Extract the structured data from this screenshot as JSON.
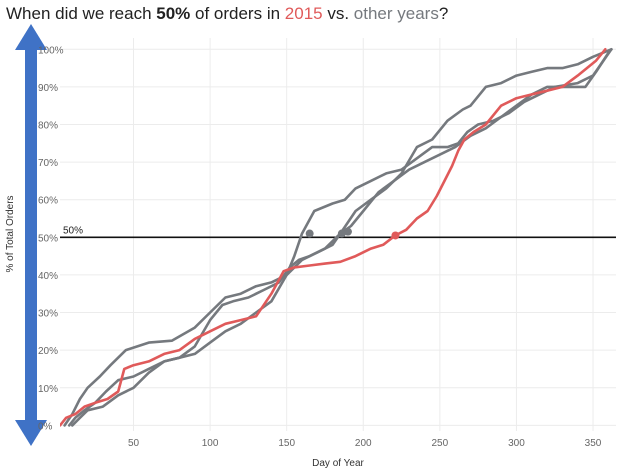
{
  "title": {
    "part1": "When did we reach ",
    "bold": "50%",
    "part2": " of orders in ",
    "highlight": "2015",
    "part3": " vs. ",
    "other": "other years",
    "part4": "?"
  },
  "colors": {
    "highlight": "#e05a5a",
    "other": "#75797e",
    "arrow": "#3f72c6",
    "reference": "#111111",
    "grid": "#ececec"
  },
  "chart_data": {
    "type": "line",
    "xlabel": "Day of Year",
    "ylabel": "% of Total Orders",
    "xlim": [
      2,
      365
    ],
    "ylim": [
      -1.5,
      103
    ],
    "x_ticks": [
      50,
      100,
      150,
      200,
      250,
      300,
      350
    ],
    "x_tick_labels": [
      "50",
      "100",
      "150",
      "200",
      "250",
      "300",
      "350"
    ],
    "y_ticks": [
      0,
      10,
      20,
      30,
      40,
      50,
      60,
      70,
      80,
      90,
      100
    ],
    "y_tick_labels": [
      "0%",
      "10%",
      "20%",
      "30%",
      "40%",
      "50%",
      "60%",
      "70%",
      "80%",
      "90%",
      "100%"
    ],
    "grid": true,
    "reference_line": {
      "y": 50,
      "label": "50%"
    },
    "series": [
      {
        "highlight": true,
        "points": [
          [
            2,
            0
          ],
          [
            6,
            2
          ],
          [
            12,
            3
          ],
          [
            18,
            5
          ],
          [
            25,
            6
          ],
          [
            33,
            7
          ],
          [
            40,
            9
          ],
          [
            44,
            15
          ],
          [
            50,
            16
          ],
          [
            60,
            17
          ],
          [
            70,
            19
          ],
          [
            80,
            20
          ],
          [
            90,
            23
          ],
          [
            100,
            25
          ],
          [
            110,
            27
          ],
          [
            120,
            28
          ],
          [
            130,
            29
          ],
          [
            140,
            35
          ],
          [
            148,
            41
          ],
          [
            155,
            42
          ],
          [
            165,
            42.5
          ],
          [
            175,
            43
          ],
          [
            185,
            43.5
          ],
          [
            195,
            45
          ],
          [
            205,
            47
          ],
          [
            213,
            48
          ],
          [
            221,
            50.5
          ],
          [
            228,
            52
          ],
          [
            235,
            55
          ],
          [
            242,
            57
          ],
          [
            248,
            61
          ],
          [
            253,
            65
          ],
          [
            258,
            69
          ],
          [
            262,
            73
          ],
          [
            266,
            76
          ],
          [
            272,
            78
          ],
          [
            280,
            80
          ],
          [
            290,
            85
          ],
          [
            300,
            87
          ],
          [
            310,
            88
          ],
          [
            320,
            89
          ],
          [
            330,
            90
          ],
          [
            340,
            93
          ],
          [
            352,
            97
          ],
          [
            358,
            100
          ]
        ],
        "marker": [
          221,
          50.5
        ]
      },
      {
        "highlight": false,
        "points": [
          [
            5,
            0
          ],
          [
            10,
            3
          ],
          [
            15,
            7
          ],
          [
            20,
            10
          ],
          [
            28,
            13
          ],
          [
            35,
            16
          ],
          [
            45,
            20
          ],
          [
            60,
            22
          ],
          [
            75,
            22.5
          ],
          [
            90,
            26
          ],
          [
            100,
            30
          ],
          [
            110,
            34
          ],
          [
            120,
            35
          ],
          [
            130,
            37
          ],
          [
            140,
            38
          ],
          [
            150,
            40
          ],
          [
            155,
            45
          ],
          [
            160,
            51
          ],
          [
            168,
            57
          ],
          [
            180,
            59
          ],
          [
            188,
            60
          ],
          [
            195,
            63
          ],
          [
            205,
            65
          ],
          [
            215,
            67
          ],
          [
            225,
            68
          ],
          [
            235,
            71
          ],
          [
            245,
            74
          ],
          [
            255,
            74
          ],
          [
            262,
            75
          ],
          [
            268,
            78
          ],
          [
            275,
            80
          ],
          [
            285,
            81
          ],
          [
            295,
            83
          ],
          [
            305,
            86
          ],
          [
            315,
            88
          ],
          [
            325,
            90
          ],
          [
            340,
            91
          ],
          [
            350,
            93
          ],
          [
            362,
            100
          ]
        ],
        "marker": [
          165,
          51
        ]
      },
      {
        "highlight": false,
        "points": [
          [
            8,
            0
          ],
          [
            12,
            2
          ],
          [
            18,
            4
          ],
          [
            25,
            6
          ],
          [
            32,
            9
          ],
          [
            40,
            12
          ],
          [
            50,
            13
          ],
          [
            60,
            15
          ],
          [
            70,
            17
          ],
          [
            80,
            18
          ],
          [
            90,
            19
          ],
          [
            100,
            22
          ],
          [
            110,
            25
          ],
          [
            120,
            27
          ],
          [
            130,
            30
          ],
          [
            140,
            33
          ],
          [
            150,
            40
          ],
          [
            160,
            44
          ],
          [
            170,
            46
          ],
          [
            180,
            48
          ],
          [
            185,
            51
          ],
          [
            192,
            53
          ],
          [
            200,
            57
          ],
          [
            210,
            62
          ],
          [
            220,
            65
          ],
          [
            230,
            68
          ],
          [
            240,
            70
          ],
          [
            250,
            72
          ],
          [
            260,
            74
          ],
          [
            270,
            77
          ],
          [
            280,
            79
          ],
          [
            290,
            82
          ],
          [
            300,
            85
          ],
          [
            310,
            88
          ],
          [
            320,
            90
          ],
          [
            335,
            90
          ],
          [
            345,
            90
          ],
          [
            352,
            94
          ],
          [
            360,
            99
          ]
        ],
        "marker": [
          190,
          51.5
        ]
      },
      {
        "highlight": false,
        "points": [
          [
            10,
            0
          ],
          [
            15,
            2
          ],
          [
            20,
            4
          ],
          [
            30,
            5
          ],
          [
            40,
            8
          ],
          [
            50,
            10
          ],
          [
            60,
            14
          ],
          [
            70,
            17
          ],
          [
            80,
            18
          ],
          [
            90,
            21
          ],
          [
            100,
            28
          ],
          [
            108,
            32
          ],
          [
            115,
            33
          ],
          [
            125,
            34
          ],
          [
            135,
            36
          ],
          [
            145,
            38
          ],
          [
            152,
            42
          ],
          [
            158,
            44
          ],
          [
            165,
            45
          ],
          [
            175,
            47
          ],
          [
            185,
            51
          ],
          [
            195,
            57
          ],
          [
            205,
            60
          ],
          [
            215,
            63
          ],
          [
            225,
            67
          ],
          [
            235,
            74
          ],
          [
            245,
            76
          ],
          [
            255,
            81
          ],
          [
            265,
            84
          ],
          [
            270,
            85
          ],
          [
            280,
            90
          ],
          [
            290,
            91
          ],
          [
            300,
            93
          ],
          [
            310,
            94
          ],
          [
            320,
            95
          ],
          [
            330,
            95
          ],
          [
            340,
            96
          ],
          [
            350,
            98
          ],
          [
            362,
            100
          ]
        ],
        "marker": [
          186,
          51
        ]
      }
    ]
  }
}
